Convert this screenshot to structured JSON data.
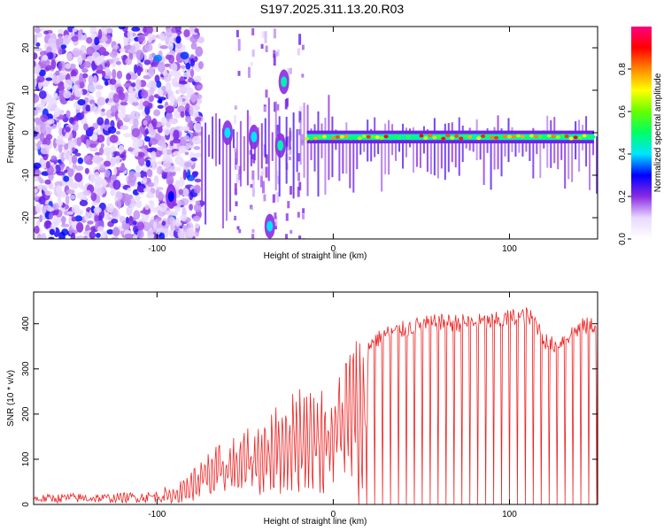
{
  "title": "S197.2025.311.13.20.R03",
  "chart_data": [
    {
      "type": "heatmap",
      "name": "spectrogram",
      "xlabel": "Height of straight line (km)",
      "ylabel": "Frequency (Hz)",
      "xlim": [
        -170,
        150
      ],
      "ylim": [
        -25,
        25
      ],
      "xticks": [
        -100,
        0,
        100
      ],
      "yticks": [
        -20,
        -10,
        0,
        10,
        20
      ],
      "colorbar": {
        "label": "Normalized spectral amplitude",
        "range": [
          0,
          1
        ],
        "ticks": [
          0.0,
          0.2,
          0.4,
          0.6,
          0.8
        ],
        "tick_labels": [
          "0.0",
          "0.2",
          "0.4",
          "0.6",
          "0.8"
        ],
        "colors": [
          "#ffffff",
          "#e8d8ff",
          "#8a2be2",
          "#0000ff",
          "#00e5ff",
          "#00ff66",
          "#66ff00",
          "#ffff00",
          "#ff8800",
          "#ff0000",
          "#ff0080"
        ]
      },
      "signal_line": {
        "x_range": [
          -15,
          148
        ],
        "frequency": -1,
        "peak_amplitude": 0.9
      },
      "features": [
        {
          "x": -28,
          "y": 12,
          "amplitude": 0.45
        },
        {
          "x": -36,
          "y": -22,
          "amplitude": 0.4
        },
        {
          "x": -60,
          "y": 0,
          "amplitude": 0.4
        },
        {
          "x": -45,
          "y": -1,
          "amplitude": 0.4
        },
        {
          "x": -30,
          "y": -3,
          "amplitude": 0.45
        },
        {
          "x": -92,
          "y": -15,
          "amplitude": 0.3
        }
      ]
    },
    {
      "type": "line",
      "name": "snr",
      "xlabel": "Height of straight line (km)",
      "ylabel": "SNR (10 * v/v)",
      "xlim": [
        -170,
        150
      ],
      "ylim": [
        0,
        470
      ],
      "xticks": [
        -100,
        0,
        100
      ],
      "yticks": [
        0,
        100,
        200,
        300,
        400
      ],
      "color": "#ee2222",
      "x": [
        -170,
        -150,
        -130,
        -110,
        -100,
        -90,
        -80,
        -70,
        -60,
        -50,
        -40,
        -30,
        -20,
        -10,
        -5,
        0,
        5,
        10,
        20,
        30,
        40,
        50,
        60,
        70,
        80,
        90,
        100,
        110,
        115,
        120,
        125,
        130,
        140,
        150
      ],
      "y": [
        15,
        18,
        17,
        20,
        22,
        35,
        70,
        110,
        130,
        150,
        170,
        210,
        250,
        230,
        240,
        260,
        300,
        330,
        360,
        385,
        395,
        405,
        410,
        410,
        410,
        412,
        420,
        425,
        410,
        370,
        360,
        370,
        400,
        405
      ],
      "dropouts_to_zero": true
    }
  ]
}
